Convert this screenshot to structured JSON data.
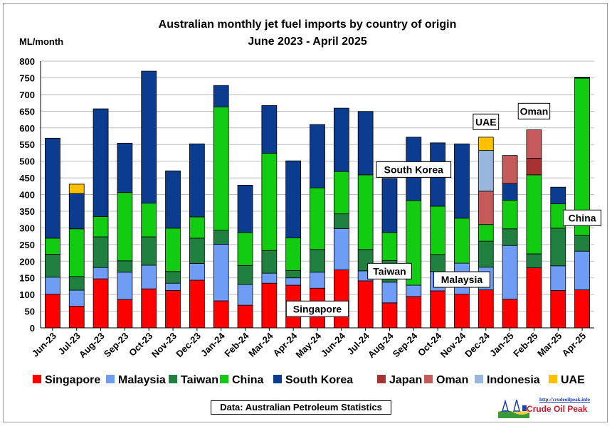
{
  "chart_data": {
    "type": "bar",
    "stacked": true,
    "title": "Australian monthly jet fuel imports by country of origin",
    "subtitle": "June 2023 - April 2025",
    "ylabel": "ML/month",
    "ylim": [
      0,
      800
    ],
    "ytick_step": 50,
    "grid": true,
    "legend_position": "bottom",
    "categories": [
      "Jun-23",
      "Jul-23",
      "Aug-23",
      "Sep-23",
      "Oct-23",
      "Nov-23",
      "Dec-23",
      "Jan-24",
      "Feb-24",
      "Mar-24",
      "Apr-24",
      "May-24",
      "Jun-24",
      "Jul-24",
      "Aug-24",
      "Sep-24",
      "Oct-24",
      "Nov-24",
      "Dec-24",
      "Jan-25",
      "Feb-25",
      "Mar-25",
      "Apr-25"
    ],
    "series": [
      {
        "name": "Singapore",
        "color": "#ff0000",
        "values": [
          101,
          65,
          147,
          85,
          117,
          112,
          143,
          81,
          68,
          134,
          128,
          119,
          174,
          141,
          75,
          94,
          111,
          101,
          114,
          86,
          180,
          112,
          114
        ]
      },
      {
        "name": "Malaysia",
        "color": "#6f9cf5",
        "values": [
          51,
          48,
          34,
          82,
          71,
          22,
          50,
          170,
          62,
          30,
          22,
          48,
          124,
          30,
          62,
          34,
          58,
          93,
          68,
          161,
          0,
          74,
          116
        ]
      },
      {
        "name": "Taiwan",
        "color": "#208040",
        "values": [
          69,
          41,
          92,
          34,
          85,
          35,
          76,
          42,
          57,
          68,
          22,
          68,
          44,
          64,
          65,
          0,
          51,
          0,
          78,
          50,
          42,
          113,
          47
        ]
      },
      {
        "name": "China",
        "color": "#11cc11",
        "values": [
          48,
          143,
          61,
          205,
          101,
          130,
          64,
          370,
          99,
          292,
          98,
          185,
          127,
          224,
          84,
          254,
          145,
          135,
          50,
          86,
          237,
          73,
          472
        ]
      },
      {
        "name": "South Korea",
        "color": "#0b3c8f",
        "values": [
          300,
          106,
          323,
          148,
          396,
          172,
          219,
          64,
          142,
          143,
          231,
          190,
          190,
          190,
          162,
          190,
          190,
          223,
          0,
          50,
          0,
          50,
          3
        ]
      },
      {
        "name": "Japan",
        "color": "#a83232",
        "values": [
          0,
          0,
          0,
          0,
          0,
          0,
          0,
          0,
          0,
          0,
          0,
          0,
          0,
          0,
          0,
          0,
          0,
          0,
          0,
          0,
          50,
          0,
          0
        ]
      },
      {
        "name": "Oman",
        "color": "#c55a5a",
        "values": [
          0,
          0,
          0,
          0,
          0,
          0,
          0,
          0,
          0,
          0,
          0,
          0,
          0,
          0,
          0,
          0,
          0,
          0,
          100,
          84,
          85,
          0,
          0
        ]
      },
      {
        "name": "Indonesia",
        "color": "#98b7df",
        "values": [
          0,
          0,
          0,
          0,
          0,
          0,
          0,
          0,
          0,
          0,
          0,
          0,
          0,
          0,
          0,
          0,
          0,
          0,
          122,
          0,
          0,
          0,
          0
        ]
      },
      {
        "name": "UAE",
        "color": "#ffc000",
        "values": [
          0,
          28,
          0,
          0,
          0,
          0,
          0,
          0,
          0,
          0,
          0,
          0,
          0,
          0,
          0,
          0,
          0,
          0,
          40,
          0,
          0,
          0,
          0
        ]
      }
    ],
    "annotations": [
      {
        "text": "Singapore",
        "category": "May-24",
        "y": 57
      },
      {
        "text": "Taiwan",
        "category": "Aug-24",
        "y": 170
      },
      {
        "text": "Malaysia",
        "category": "Nov-24",
        "y": 145
      },
      {
        "text": "South Korea",
        "category": "Sep-24",
        "y": 475
      },
      {
        "text": "UAE",
        "category": "Dec-24",
        "y": 618
      },
      {
        "text": "Oman",
        "category": "Feb-25",
        "y": 650
      },
      {
        "text": "China",
        "category": "Apr-25",
        "y": 330
      }
    ]
  },
  "source": "Data: Australian Petroleum Statistics",
  "logo": {
    "url": "http://crudeoilpeak.info",
    "name": "Crude Oil Peak"
  }
}
